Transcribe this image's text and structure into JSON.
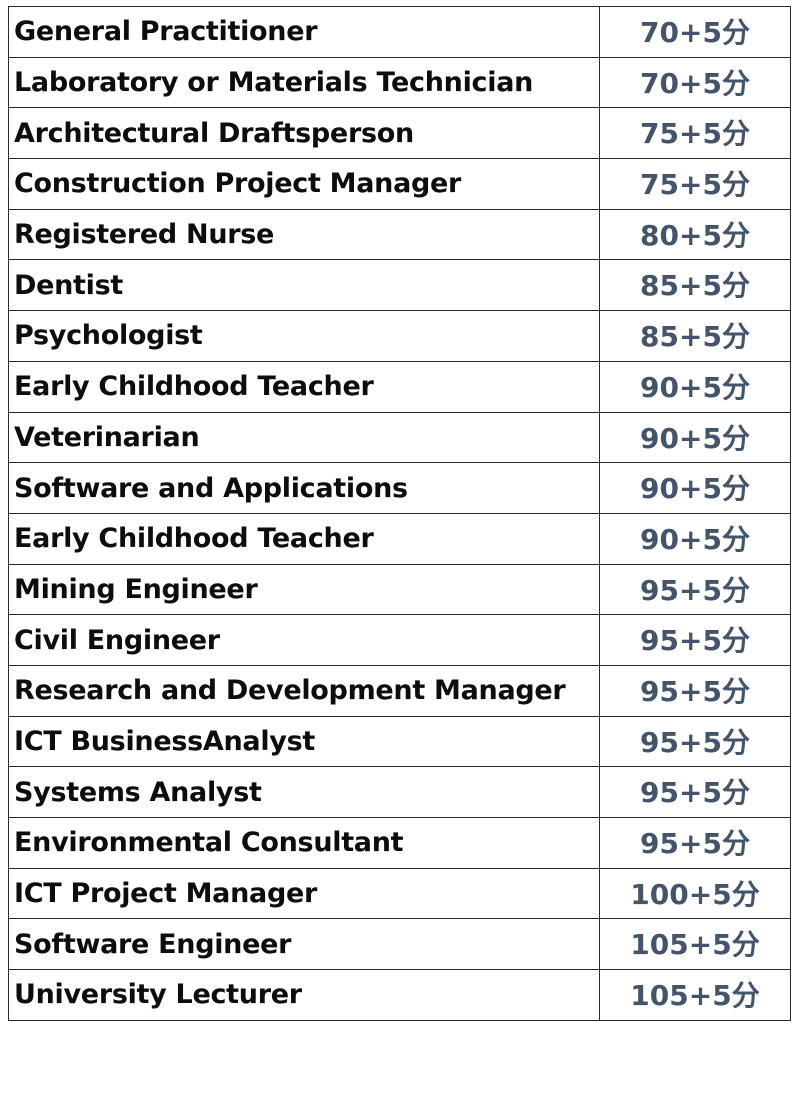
{
  "rows": [
    {
      "occupation": "General Practitioner",
      "points": "70+5分"
    },
    {
      "occupation": "Laboratory or Materials Technician",
      "points": "70+5分"
    },
    {
      "occupation": "Architectural Draftsperson",
      "points": "75+5分"
    },
    {
      "occupation": "Construction Project Manager",
      "points": "75+5分"
    },
    {
      "occupation": "Registered Nurse",
      "points": "80+5分"
    },
    {
      "occupation": "Dentist",
      "points": "85+5分"
    },
    {
      "occupation": "Psychologist",
      "points": "85+5分"
    },
    {
      "occupation": "Early Childhood Teacher",
      "points": "90+5分"
    },
    {
      "occupation": "Veterinarian",
      "points": "90+5分"
    },
    {
      "occupation": "Software and Applications",
      "points": "90+5分"
    },
    {
      "occupation": "Early Childhood Teacher",
      "points": "90+5分"
    },
    {
      "occupation": "Mining Engineer",
      "points": "95+5分"
    },
    {
      "occupation": "Civil Engineer",
      "points": "95+5分"
    },
    {
      "occupation": "Research and Development Manager",
      "points": "95+5分"
    },
    {
      "occupation": "ICT BusinessAnalyst",
      "points": "95+5分"
    },
    {
      "occupation": "Systems Analyst",
      "points": "95+5分"
    },
    {
      "occupation": "Environmental Consultant",
      "points": "95+5分"
    },
    {
      "occupation": "ICT Project Manager",
      "points": "100+5分"
    },
    {
      "occupation": "Software Engineer",
      "points": "105+5分"
    },
    {
      "occupation": "University Lecturer",
      "points": "105+5分"
    }
  ]
}
